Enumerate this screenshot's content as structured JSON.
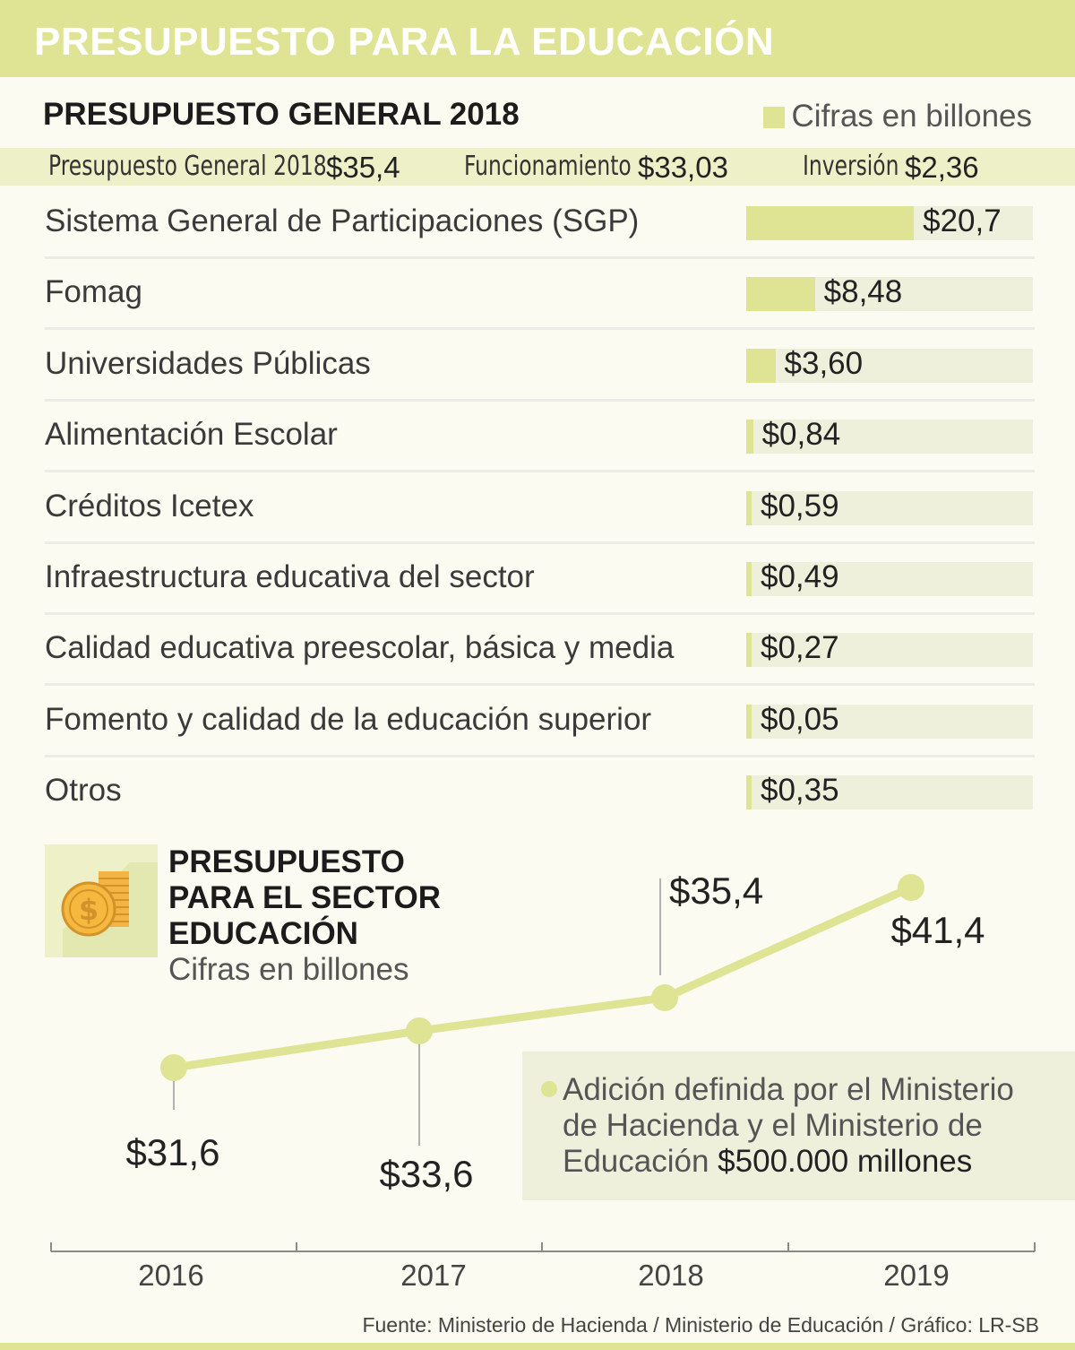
{
  "header": {
    "title": "PRESUPUESTO PARA LA EDUCACIÓN"
  },
  "section": {
    "title": "PRESUPUESTO GENERAL 2018",
    "legend_label": "Cifras en billones"
  },
  "summary": [
    {
      "label": "Presupuesto General 2018",
      "value": "$35,4"
    },
    {
      "label": "Funcionamiento",
      "value": "$33,03"
    },
    {
      "label": "Inversión",
      "value": "$2,36"
    }
  ],
  "colors": {
    "accent": "#dfe495",
    "light_band": "#eef0c7",
    "track": "#eef0dc"
  },
  "icon": {
    "name": "coins-dollar-icon"
  },
  "chart_data": [
    {
      "type": "bar",
      "orientation": "horizontal",
      "title": "PRESUPUESTO GENERAL 2018",
      "unit_note": "Cifras en billones",
      "categories": [
        "Sistema General de Participaciones (SGP)",
        "Fomag",
        "Universidades Públicas",
        "Alimentación Escolar",
        "Créditos Icetex",
        "Infraestructura educativa del sector",
        "Calidad educativa preescolar, básica y media",
        "Fomento y calidad de la educación superior",
        "Otros"
      ],
      "values": [
        20.7,
        8.48,
        3.6,
        0.84,
        0.59,
        0.49,
        0.27,
        0.05,
        0.35
      ],
      "value_labels": [
        "$20,7",
        "$8,48",
        "$3,60",
        "$0,84",
        "$0,59",
        "$0,49",
        "$0,27",
        "$0,05",
        "$0,35"
      ],
      "xlim": [
        0,
        35.4
      ]
    },
    {
      "type": "line",
      "title_lines": [
        "PRESUPUESTO",
        "PARA EL SECTOR",
        "EDUCACIÓN"
      ],
      "subtitle": "Cifras en billones",
      "x": [
        "2016",
        "2017",
        "2018",
        "2019"
      ],
      "values": [
        31.6,
        33.6,
        35.4,
        41.4
      ],
      "value_labels": [
        "$31,6",
        "$33,6",
        "$35,4",
        "$41,4"
      ],
      "ylim": [
        29.0,
        43.0
      ]
    }
  ],
  "note": {
    "line1": "Adición definida por el Ministerio",
    "line2": "de Hacienda y el Ministerio de",
    "line3_prefix": "Educación ",
    "line3_bold": "$500.000 millones"
  },
  "source": "Fuente: Ministerio de Hacienda / Ministerio de Educación  / Gráfico: LR-SB"
}
